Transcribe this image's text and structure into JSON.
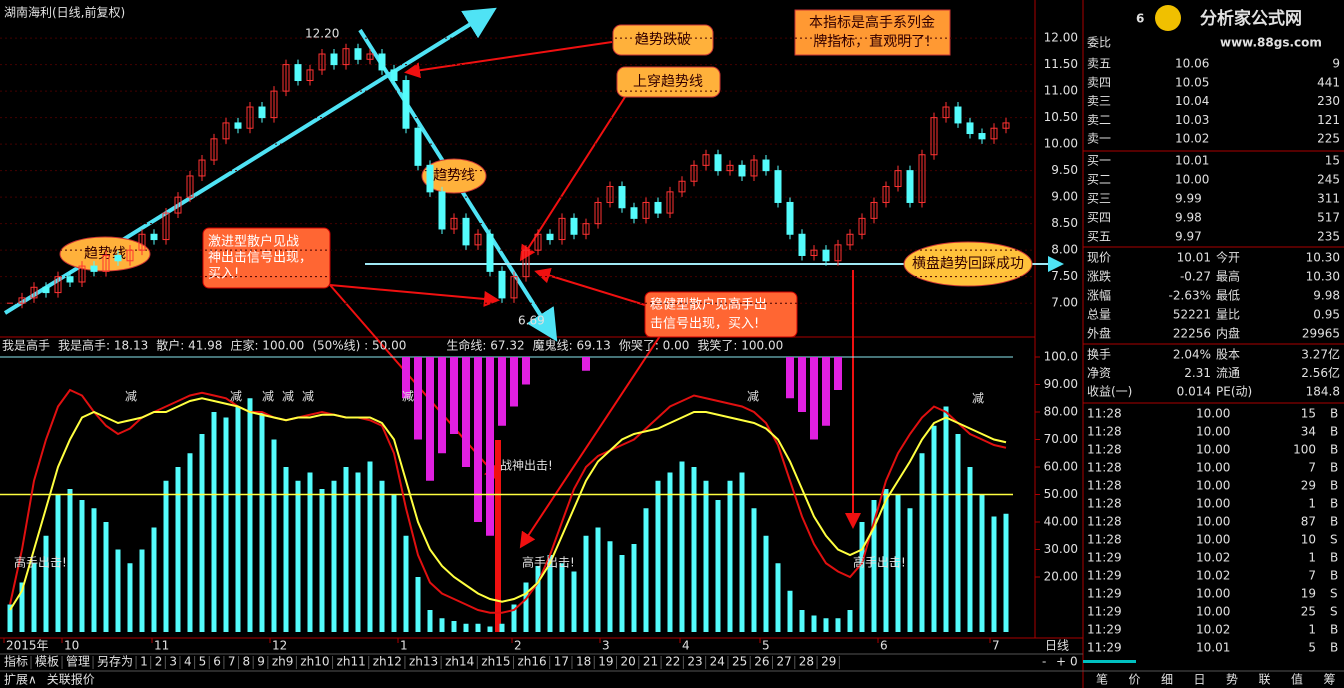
{
  "header": {
    "title": "湖南海利(日线,前复权)",
    "top_right": "6"
  },
  "logo": {
    "name": "分析家公式网",
    "url": "www.88gs.com"
  },
  "price_chart": {
    "close": [
      7.0,
      7.1,
      7.3,
      7.2,
      7.5,
      7.4,
      7.7,
      7.6,
      7.9,
      7.8,
      8.0,
      8.3,
      8.2,
      8.7,
      9.0,
      9.4,
      9.7,
      10.1,
      10.4,
      10.3,
      10.7,
      10.5,
      11.0,
      11.5,
      11.2,
      11.4,
      11.7,
      11.5,
      11.8,
      11.6,
      11.7,
      11.4,
      11.2,
      10.3,
      9.6,
      9.1,
      8.4,
      8.6,
      8.1,
      8.3,
      7.6,
      7.1,
      7.5,
      8.0,
      8.3,
      8.2,
      8.6,
      8.3,
      8.5,
      8.9,
      9.2,
      8.8,
      8.6,
      8.9,
      8.7,
      9.1,
      9.3,
      9.6,
      9.8,
      9.5,
      9.6,
      9.4,
      9.7,
      9.5,
      8.9,
      8.3,
      7.9,
      8.0,
      7.8,
      8.1,
      8.3,
      8.6,
      8.9,
      9.2,
      9.5,
      8.9,
      9.8,
      10.5,
      10.7,
      10.4,
      10.2,
      10.1,
      10.3,
      10.4
    ],
    "up_color": "#ff3232",
    "down_color": "#54fcfc",
    "ylim": [
      6.4,
      12.53
    ],
    "ticks": [
      {
        "value": 7,
        "label": "7.00"
      },
      {
        "value": 7.5,
        "label": "7.50"
      },
      {
        "value": 8,
        "label": "8.00"
      },
      {
        "value": 8.5,
        "label": "8.50"
      },
      {
        "value": 9,
        "label": "9.00"
      },
      {
        "value": 9.5,
        "label": "9.50"
      },
      {
        "value": 10,
        "label": "10.00"
      },
      {
        "value": 10.5,
        "label": "10.50"
      },
      {
        "value": 11,
        "label": "11.00"
      },
      {
        "value": 11.5,
        "label": "11.50"
      },
      {
        "value": 12,
        "label": "12.00"
      }
    ],
    "high_label": "12.20",
    "low_label": "6.69"
  },
  "annotations": {
    "break": "趋势跌破",
    "cross": "上穿趋势线",
    "trend_a": "趋势线",
    "trend_b": "趋势线",
    "note": [
      "本指标是高手系列金",
      "牌指标，直观明了!"
    ],
    "aggressive": [
      "激进型散户见战",
      "神出击信号出现，",
      "买入!"
    ],
    "steady": [
      "稳健型散户见高手出",
      "击信号出现，买入!"
    ],
    "sideways": "横盘趋势回踩成功",
    "zhanshen": "战神出击!",
    "gaoshou": [
      "高手出击!",
      "高手出击!",
      "高手出击!"
    ],
    "jian": [
      "减",
      "减",
      "减",
      "减",
      "减",
      "减",
      "减",
      "减"
    ]
  },
  "indicator": {
    "legend": [
      {
        "text": "我是高手",
        "color": "#e0e0e0"
      },
      {
        "text": "我是高手: 18.13",
        "color": "#ff3232"
      },
      {
        "text": "散户: 41.98",
        "color": "#e0e0e0"
      },
      {
        "text": "庄家: 100.00",
        "color": "#54fcfc"
      },
      {
        "text": "(50%线) : 50.00",
        "color": "#e0e0e0"
      },
      {
        "text": "生命线: 67.32",
        "color": "#ff3232"
      },
      {
        "text": "魔鬼线: 69.13",
        "color": "#e0e0e0"
      },
      {
        "text": "你哭了: 0.00",
        "color": "#ff40ff"
      },
      {
        "text": "我笑了: 100.00",
        "color": "#54fcfc"
      }
    ],
    "histogram": [
      10,
      18,
      25,
      35,
      50,
      52,
      48,
      45,
      40,
      30,
      25,
      30,
      38,
      55,
      60,
      65,
      72,
      80,
      78,
      82,
      85,
      80,
      70,
      60,
      55,
      58,
      52,
      55,
      60,
      58,
      62,
      55,
      50,
      35,
      20,
      8,
      5,
      4,
      3,
      3,
      2,
      3,
      10,
      18,
      24,
      28,
      25,
      22,
      35,
      38,
      33,
      28,
      32,
      45,
      55,
      58,
      62,
      60,
      55,
      48,
      55,
      58,
      45,
      35,
      25,
      15,
      8,
      6,
      5,
      5,
      8,
      40,
      48,
      52,
      50,
      45,
      65,
      75,
      82,
      72,
      60,
      50,
      42,
      43
    ],
    "magenta": [
      null,
      null,
      null,
      null,
      null,
      null,
      null,
      null,
      null,
      null,
      null,
      null,
      null,
      null,
      null,
      null,
      null,
      null,
      null,
      null,
      null,
      null,
      null,
      null,
      null,
      null,
      null,
      null,
      null,
      null,
      null,
      null,
      null,
      85,
      70,
      55,
      65,
      72,
      60,
      40,
      35,
      75,
      82,
      90,
      null,
      null,
      null,
      null,
      95,
      null,
      null,
      null,
      null,
      null,
      null,
      null,
      null,
      null,
      null,
      null,
      null,
      null,
      null,
      null,
      null,
      85,
      80,
      70,
      75,
      88,
      null,
      null,
      null,
      null,
      null,
      null,
      null,
      null,
      null,
      null,
      null,
      null,
      null,
      null
    ],
    "red_line": [
      10,
      30,
      55,
      70,
      82,
      88,
      86,
      80,
      75,
      72,
      74,
      78,
      80,
      82,
      84,
      86,
      87,
      86,
      85,
      82,
      80,
      80,
      78,
      77,
      78,
      79,
      80,
      79,
      78,
      78,
      77,
      75,
      65,
      45,
      28,
      18,
      14,
      12,
      10,
      8,
      7,
      7,
      8,
      12,
      18,
      28,
      40,
      52,
      60,
      64,
      66,
      68,
      70,
      74,
      78,
      82,
      84,
      86,
      85,
      84,
      83,
      82,
      80,
      76,
      68,
      55,
      42,
      32,
      25,
      22,
      20,
      25,
      40,
      55,
      65,
      72,
      78,
      82,
      80,
      76,
      72,
      70,
      68,
      67
    ],
    "yellow_line": [
      8,
      15,
      30,
      45,
      60,
      70,
      78,
      80,
      78,
      76,
      77,
      78,
      80,
      80,
      82,
      84,
      85,
      84,
      83,
      82,
      80,
      79,
      78,
      77,
      78,
      78,
      79,
      79,
      78,
      78,
      78,
      76,
      70,
      55,
      40,
      30,
      24,
      20,
      17,
      14,
      12,
      11,
      12,
      14,
      18,
      25,
      35,
      45,
      55,
      62,
      66,
      70,
      72,
      73,
      74,
      76,
      78,
      80,
      80,
      79,
      78,
      77,
      76,
      74,
      70,
      62,
      52,
      42,
      35,
      30,
      28,
      30,
      38,
      48,
      55,
      62,
      70,
      76,
      78,
      76,
      74,
      72,
      70,
      69
    ],
    "midline": 50,
    "ylim": [
      0,
      100
    ],
    "ticks": [
      {
        "value": 20,
        "label": "20.00"
      },
      {
        "value": 30,
        "label": "30.00"
      },
      {
        "value": 40,
        "label": "40.00"
      },
      {
        "value": 50,
        "label": "50.00"
      },
      {
        "value": 60,
        "label": "60.00"
      },
      {
        "value": 70,
        "label": "70.00"
      },
      {
        "value": 80,
        "label": "80.00"
      },
      {
        "value": 90,
        "label": "90.00"
      },
      {
        "value": 100,
        "label": "100.0"
      }
    ]
  },
  "x_axis": {
    "labels": [
      "2015年",
      "10",
      "11",
      "12",
      "1",
      "2",
      "3",
      "4",
      "5",
      "6",
      "7"
    ],
    "period": "日线"
  },
  "toolbar": {
    "tabs": [
      "指标",
      "模板",
      "管理",
      "另存为",
      "1",
      "2",
      "3",
      "4",
      "5",
      "6",
      "7",
      "8",
      "9",
      "zh9",
      "zh10",
      "zh11",
      "zh12",
      "zh13",
      "zh14",
      "zh15",
      "zh16",
      "17",
      "18",
      "19",
      "20",
      "21",
      "22",
      "23",
      "24",
      "25",
      "26",
      "27",
      "28",
      "29"
    ],
    "controls": [
      "-",
      "+",
      "0"
    ]
  },
  "footer": {
    "items": [
      "扩展∧",
      "关联报价"
    ]
  },
  "quote": {
    "weibi": "委比",
    "book": [
      [
        "卖五",
        "10.06",
        "9"
      ],
      [
        "卖四",
        "10.05",
        "441"
      ],
      [
        "卖三",
        "10.04",
        "230"
      ],
      [
        "卖二",
        "10.03",
        "121"
      ],
      [
        "卖一",
        "10.02",
        "225"
      ],
      [
        "买一",
        "10.01",
        "15"
      ],
      [
        "买二",
        "10.00",
        "245"
      ],
      [
        "买三",
        "9.99",
        "311"
      ],
      [
        "买四",
        "9.98",
        "517"
      ],
      [
        "买五",
        "9.97",
        "235"
      ]
    ],
    "stats": [
      [
        "现价",
        "10.01",
        "今开",
        "10.30"
      ],
      [
        "涨跌",
        "-0.27",
        "最高",
        "10.30"
      ],
      [
        "涨幅",
        "-2.63%",
        "最低",
        "9.98"
      ],
      [
        "总量",
        "52221",
        "量比",
        "0.95"
      ],
      [
        "外盘",
        "22256",
        "内盘",
        "29965"
      ],
      [
        "换手",
        "2.04%",
        "股本",
        "3.27亿"
      ],
      [
        "净资",
        "2.31",
        "流通",
        "2.56亿"
      ],
      [
        "收益(一)",
        "0.014",
        "PE(动)",
        "184.8"
      ]
    ],
    "trades": [
      [
        "11:28",
        "10.00",
        "15",
        "B"
      ],
      [
        "11:28",
        "10.00",
        "34",
        "B"
      ],
      [
        "11:28",
        "10.00",
        "100",
        "B"
      ],
      [
        "11:28",
        "10.00",
        "7",
        "B"
      ],
      [
        "11:28",
        "10.00",
        "29",
        "B"
      ],
      [
        "11:28",
        "10.00",
        "1",
        "B"
      ],
      [
        "11:28",
        "10.00",
        "87",
        "B"
      ],
      [
        "11:28",
        "10.00",
        "10",
        "S"
      ],
      [
        "11:29",
        "10.02",
        "1",
        "B"
      ],
      [
        "11:29",
        "10.02",
        "7",
        "B"
      ],
      [
        "11:29",
        "10.00",
        "19",
        "S"
      ],
      [
        "11:29",
        "10.00",
        "25",
        "S"
      ],
      [
        "11:29",
        "10.02",
        "1",
        "B"
      ],
      [
        "11:29",
        "10.01",
        "5",
        "B"
      ]
    ],
    "tabs": [
      "笔",
      "价",
      "细",
      "日",
      "势",
      "联",
      "值",
      "筹"
    ]
  }
}
